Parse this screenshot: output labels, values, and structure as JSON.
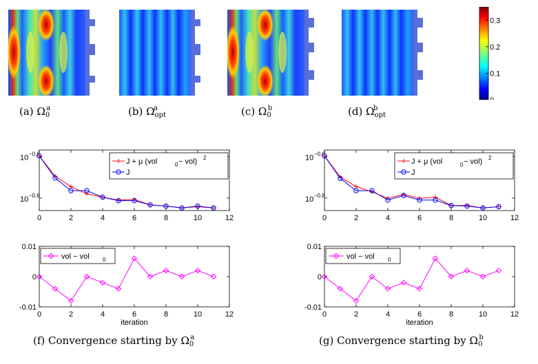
{
  "fields": [
    {
      "caption_prefix": "(a)",
      "symbol": "Ω",
      "sub": "0",
      "sup": "a"
    },
    {
      "caption_prefix": "(b)",
      "symbol": "Ω",
      "sub": "opt",
      "sup": "a"
    },
    {
      "caption_prefix": "(c)",
      "symbol": "Ω",
      "sub": "0",
      "sup": "b"
    },
    {
      "caption_prefix": "(d)",
      "symbol": "Ω",
      "sub": "opt",
      "sup": "b"
    }
  ],
  "colorbar": {
    "ticks": [
      "0",
      "0.1",
      "0.2",
      "0.3"
    ],
    "min": 0,
    "max": 0.35,
    "colormap": "jet"
  },
  "panel_captions": [
    {
      "prefix": "(f)",
      "text": "Convergence starting by",
      "symbol": "Ω",
      "sub": "0",
      "sup": "a"
    },
    {
      "prefix": "(g)",
      "text": "Convergence starting by",
      "symbol": "Ω",
      "sub": "0",
      "sup": "b"
    }
  ],
  "chart_data": [
    {
      "type": "line",
      "panel": "f-top",
      "xlim": [
        0,
        12
      ],
      "xticks": [
        "0",
        "2",
        "4",
        "6",
        "8",
        "10",
        "12"
      ],
      "yscale": "log",
      "ylim": [
        0.138,
        0.27
      ],
      "yticks": [
        "10",
        "10"
      ],
      "ytick_exponents": [
        "−0.6",
        "−0.8"
      ],
      "yticks_values": [
        0.2512,
        0.1585
      ],
      "legend": [
        "J + μ (vol",
        "0",
        " − vol)",
        "2",
        "J"
      ],
      "series": [
        {
          "name": "J + μ (vol0 − vol)^2",
          "color": "#ff0000",
          "marker": "plus",
          "x": [
            0,
            1,
            2,
            3,
            4,
            5,
            6,
            7,
            8,
            9,
            10,
            11
          ],
          "values": [
            0.253,
            0.202,
            0.18,
            0.166,
            0.16,
            0.155,
            0.156,
            0.147,
            0.145,
            0.142,
            0.144,
            0.142
          ]
        },
        {
          "name": "J",
          "color": "#0000ff",
          "marker": "circle",
          "x": [
            0,
            1,
            2,
            3,
            4,
            5,
            6,
            7,
            8,
            9,
            10,
            11
          ],
          "values": [
            0.253,
            0.198,
            0.172,
            0.172,
            0.16,
            0.154,
            0.154,
            0.147,
            0.145,
            0.142,
            0.145,
            0.142
          ]
        }
      ]
    },
    {
      "type": "line",
      "panel": "f-bottom",
      "xlim": [
        0,
        12
      ],
      "xticks": [
        "0",
        "2",
        "4",
        "6",
        "8",
        "10",
        "12"
      ],
      "xlabel": "iteration",
      "ylim": [
        -0.01,
        0.01
      ],
      "yticks": [
        "-0.01",
        "0",
        "0.01"
      ],
      "legend": [
        "vol − vol",
        "0"
      ],
      "series": [
        {
          "name": "vol − vol0",
          "color": "#ff00ff",
          "marker": "diamond",
          "x": [
            0,
            1,
            2,
            3,
            4,
            5,
            6,
            7,
            8,
            9,
            10,
            11
          ],
          "values": [
            0,
            -0.004,
            -0.008,
            0,
            -0.002,
            -0.004,
            0.006,
            0,
            0.002,
            0,
            0.002,
            0
          ]
        }
      ]
    },
    {
      "type": "line",
      "panel": "g-top",
      "xlim": [
        0,
        12
      ],
      "xticks": [
        "0",
        "2",
        "4",
        "6",
        "8",
        "10",
        "12"
      ],
      "yscale": "log",
      "ylim": [
        0.138,
        0.27
      ],
      "yticks": [
        "10",
        "10"
      ],
      "ytick_exponents": [
        "−0.6",
        "−0.8"
      ],
      "yticks_values": [
        0.2512,
        0.1585
      ],
      "legend": [
        "J + μ (vol",
        "0",
        " − vol)",
        "2",
        "J"
      ],
      "series": [
        {
          "name": "J + μ (vol0 − vol)^2",
          "color": "#ff0000",
          "marker": "plus",
          "x": [
            0,
            1,
            2,
            3,
            4,
            5,
            6,
            7,
            8,
            9,
            10,
            11
          ],
          "values": [
            0.253,
            0.2,
            0.18,
            0.17,
            0.158,
            0.165,
            0.158,
            0.16,
            0.146,
            0.146,
            0.142,
            0.144
          ]
        },
        {
          "name": "J",
          "color": "#0000ff",
          "marker": "circle",
          "x": [
            0,
            1,
            2,
            3,
            4,
            5,
            6,
            7,
            8,
            9,
            10,
            11
          ],
          "values": [
            0.253,
            0.197,
            0.172,
            0.172,
            0.155,
            0.163,
            0.155,
            0.155,
            0.146,
            0.145,
            0.142,
            0.144
          ]
        }
      ]
    },
    {
      "type": "line",
      "panel": "g-bottom",
      "xlim": [
        0,
        12
      ],
      "xticks": [
        "0",
        "2",
        "4",
        "6",
        "8",
        "10",
        "12"
      ],
      "xlabel": "iteration",
      "ylim": [
        -0.01,
        0.01
      ],
      "yticks": [
        "-0.01",
        "0",
        "0.01"
      ],
      "legend": [
        "vol − vol",
        "0"
      ],
      "series": [
        {
          "name": "vol − vol0",
          "color": "#ff00ff",
          "marker": "diamond",
          "x": [
            0,
            1,
            2,
            3,
            4,
            5,
            6,
            7,
            8,
            9,
            10,
            11
          ],
          "values": [
            0,
            -0.004,
            -0.008,
            0,
            -0.004,
            -0.002,
            -0.004,
            0.006,
            0,
            0.002,
            0,
            0.002
          ]
        }
      ]
    }
  ]
}
